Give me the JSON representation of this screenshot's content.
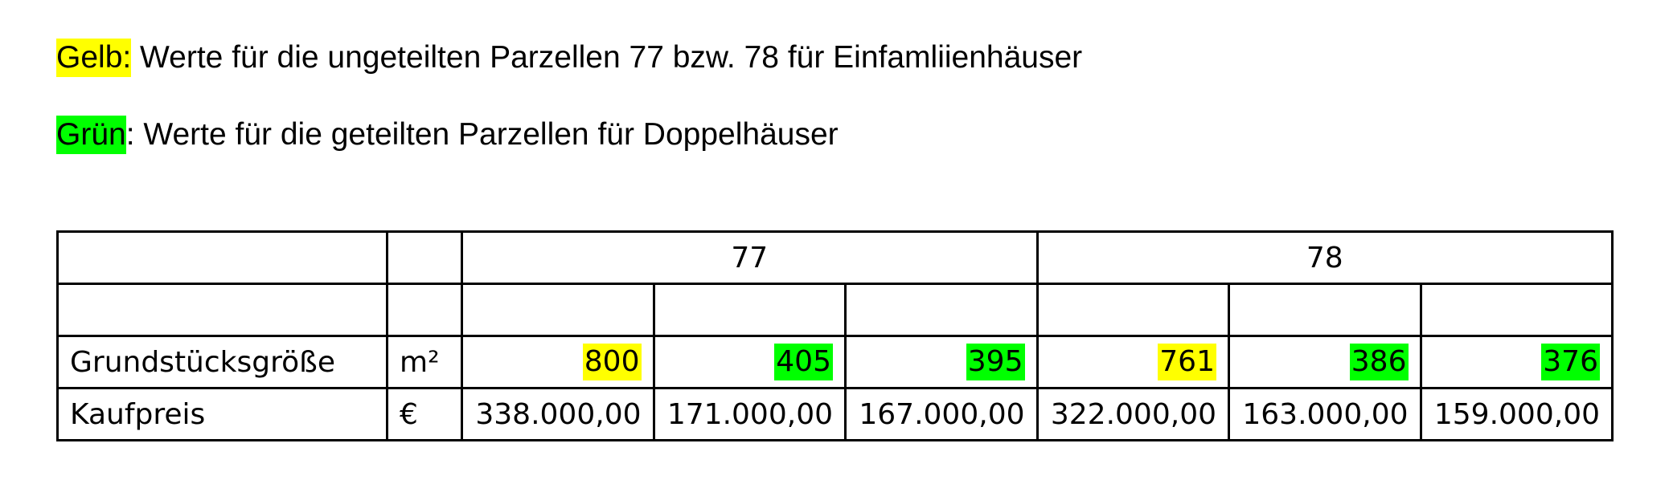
{
  "legend": {
    "yellow": {
      "label": "Gelb:",
      "text": " Werte für die ungeteilten Parzellen 77 bzw. 78 für Einfamliienhäuser",
      "color": "#ffff00"
    },
    "green": {
      "label": "Grün",
      "text": ": Werte für die geteilten Parzellen für Doppelhäuser",
      "color": "#00ff00"
    }
  },
  "table": {
    "groups": [
      "77",
      "78"
    ],
    "rows": [
      {
        "label": "Grundstücksgröße",
        "unit": "m²",
        "values": [
          "800",
          "405",
          "395",
          "761",
          "386",
          "376"
        ]
      },
      {
        "label": "Kaufpreis",
        "unit": "€",
        "values": [
          "338.000,00",
          "171.000,00",
          "167.000,00",
          "322.000,00",
          "163.000,00",
          "159.000,00"
        ]
      }
    ]
  }
}
